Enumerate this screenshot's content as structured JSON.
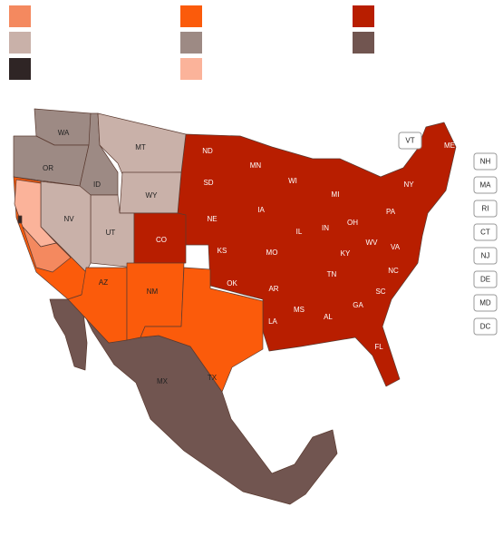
{
  "labels": [
    "WA",
    "OR",
    "ID",
    "MT",
    "WY",
    "NV",
    "UT",
    "CO",
    "AZ",
    "NM",
    "TX",
    "ND",
    "SD",
    "NE",
    "KS",
    "OK",
    "MN",
    "IA",
    "MO",
    "AR",
    "LA",
    "WI",
    "IL",
    "MI",
    "IN",
    "OH",
    "KY",
    "TN",
    "MS",
    "AL",
    "GA",
    "FL",
    "SC",
    "NC",
    "VA",
    "WV",
    "PA",
    "NY",
    "ME",
    "MX"
  ],
  "small_states": [
    "VT",
    "NH",
    "MA",
    "RI",
    "CT",
    "NJ",
    "DE",
    "MD",
    "DC"
  ]
}
